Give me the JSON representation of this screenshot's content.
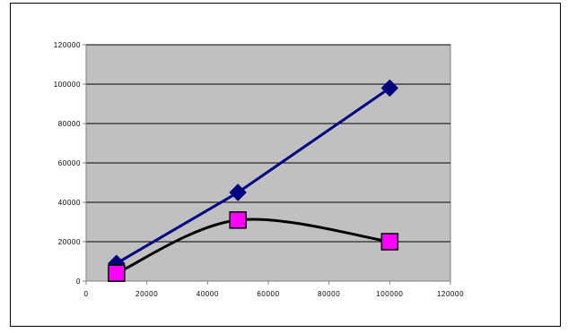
{
  "chart_data": {
    "type": "line",
    "title": "",
    "xlabel": "",
    "ylabel": "",
    "xlim": [
      0,
      120000
    ],
    "ylim": [
      0,
      120000
    ],
    "x_ticks": [
      "0",
      "20000",
      "40000",
      "60000",
      "80000",
      "100000",
      "120000"
    ],
    "y_ticks": [
      "0",
      "20000",
      "40000",
      "60000",
      "80000",
      "100000",
      "120000"
    ],
    "grid": "horizontal major gridlines",
    "legend": "none",
    "plot_background": "#C0C0C0",
    "series": [
      {
        "color": "#000080",
        "marker": "diamond",
        "marker_color": "#000080",
        "curve": "straight",
        "points": [
          [
            10000,
            9000
          ],
          [
            50000,
            45000
          ],
          [
            100000,
            98000
          ]
        ]
      },
      {
        "color": "#000000",
        "marker": "square",
        "marker_color": "#FF00FF",
        "curve": "smooth",
        "points": [
          [
            10000,
            4000
          ],
          [
            50000,
            31000
          ],
          [
            100000,
            20000
          ]
        ]
      }
    ]
  }
}
